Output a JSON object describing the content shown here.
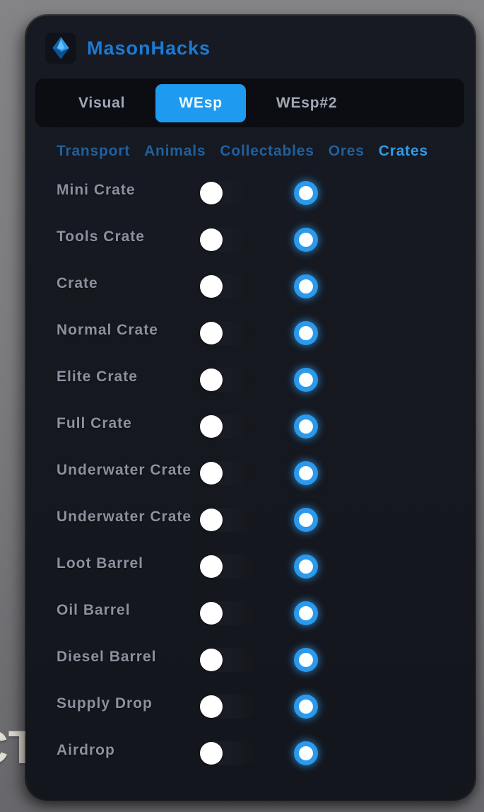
{
  "app": {
    "title": "MasonHacks",
    "logo": "gem-icon"
  },
  "background": {
    "partial_text": "CT"
  },
  "colors": {
    "accent_blue": "#1e9af0",
    "title_blue": "#1b7bd4",
    "subtab_active": "#2f9be8",
    "subtab_inactive": "#20609c",
    "item_color_swatch": "#2b99ec",
    "panel_bg": "#14161d",
    "tabbar_bg": "#0b0d12"
  },
  "tabs": [
    {
      "label": "Visual",
      "active": false
    },
    {
      "label": "WEsp",
      "active": true
    },
    {
      "label": "WEsp#2",
      "active": false
    }
  ],
  "subtabs": [
    {
      "label": "Transport",
      "active": false
    },
    {
      "label": "Animals",
      "active": false
    },
    {
      "label": "Collectables",
      "active": false
    },
    {
      "label": "Ores",
      "active": false
    },
    {
      "label": "Crates",
      "active": true
    }
  ],
  "items": [
    {
      "label": "Mini Crate",
      "enabled": false,
      "color": "#2b99ec"
    },
    {
      "label": "Tools Crate",
      "enabled": false,
      "color": "#2b99ec"
    },
    {
      "label": "Crate",
      "enabled": false,
      "color": "#2b99ec"
    },
    {
      "label": "Normal Crate",
      "enabled": false,
      "color": "#2b99ec"
    },
    {
      "label": "Elite Crate",
      "enabled": false,
      "color": "#2b99ec"
    },
    {
      "label": "Full Crate",
      "enabled": false,
      "color": "#2b99ec"
    },
    {
      "label": "Underwater Crate",
      "enabled": false,
      "color": "#2b99ec"
    },
    {
      "label": "Underwater Crate",
      "enabled": false,
      "color": "#2b99ec"
    },
    {
      "label": "Loot Barrel",
      "enabled": false,
      "color": "#2b99ec"
    },
    {
      "label": "Oil Barrel",
      "enabled": false,
      "color": "#2b99ec"
    },
    {
      "label": "Diesel Barrel",
      "enabled": false,
      "color": "#2b99ec"
    },
    {
      "label": "Supply Drop",
      "enabled": false,
      "color": "#2b99ec"
    },
    {
      "label": "Airdrop",
      "enabled": false,
      "color": "#2b99ec"
    }
  ]
}
